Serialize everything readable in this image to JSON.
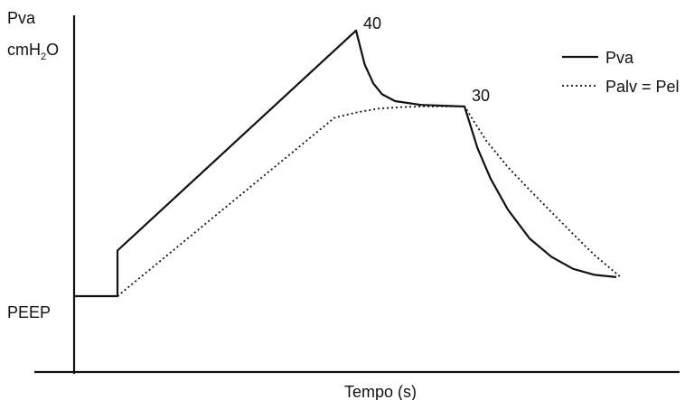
{
  "chart_data": {
    "type": "line",
    "title": "",
    "ylabel_line1": "Pva",
    "ylabel_line2_main": "cmH",
    "ylabel_line2_sub": "2",
    "ylabel_line2_end": "O",
    "xlabel": "Tempo (s)",
    "ytick_label": "PEEP",
    "annotations": {
      "peak": "40",
      "plateau": "30"
    },
    "series": [
      {
        "name": "Pva",
        "style": "solid",
        "color": "#111111",
        "points": [
          [
            0.0,
            5
          ],
          [
            1.0,
            5
          ],
          [
            1.0,
            11
          ],
          [
            6.5,
            40
          ],
          [
            6.7,
            35.5
          ],
          [
            6.9,
            33
          ],
          [
            7.1,
            31.6
          ],
          [
            7.4,
            30.7
          ],
          [
            8.0,
            30.2
          ],
          [
            9.0,
            30.0
          ],
          [
            9.3,
            24.5
          ],
          [
            9.6,
            20.5
          ],
          [
            10.0,
            16.4
          ],
          [
            10.5,
            12.6
          ],
          [
            11.0,
            10.2
          ],
          [
            11.5,
            8.6
          ],
          [
            12.0,
            7.8
          ],
          [
            12.5,
            7.5
          ]
        ]
      },
      {
        "name": "Palv = Pel",
        "style": "dotted",
        "color": "#111111",
        "points": [
          [
            1.0,
            5
          ],
          [
            6.0,
            28.5
          ],
          [
            6.5,
            29.2
          ],
          [
            7.0,
            29.7
          ],
          [
            7.5,
            29.9
          ],
          [
            8.0,
            30.0
          ],
          [
            9.0,
            30.0
          ],
          [
            9.5,
            25.5
          ],
          [
            10.0,
            22.0
          ],
          [
            10.5,
            19.0
          ],
          [
            11.0,
            16.1
          ],
          [
            11.5,
            13.2
          ],
          [
            12.0,
            10.4
          ],
          [
            12.6,
            7.5
          ]
        ]
      }
    ],
    "legend": {
      "position": "top-right",
      "entries": [
        "Pva",
        "Palv = Pel"
      ]
    },
    "xlim": [
      0,
      14
    ],
    "ylim": [
      -5,
      42
    ]
  }
}
